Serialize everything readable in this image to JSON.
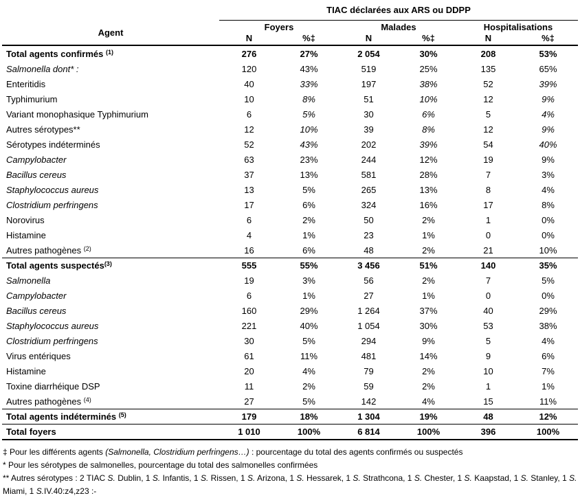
{
  "title": "TIAC déclarées aux ARS ou DDPP",
  "header": {
    "agent": "Agent",
    "groups": [
      "Foyers",
      "Malades",
      "Hospitalisations"
    ],
    "subs": [
      "N",
      "%‡",
      "N",
      "%‡",
      "N",
      "%‡"
    ]
  },
  "colors": {
    "text": "#000000",
    "background": "#ffffff",
    "rule": "#000000"
  },
  "rows": [
    {
      "label": "Total agents confirmés",
      "sup": "(1)",
      "supSpace": true,
      "bold": true,
      "indent": 0,
      "values": [
        "276",
        "27%",
        "2 054",
        "30%",
        "208",
        "53%"
      ]
    },
    {
      "label": "Salmonella dont* :",
      "italic": true,
      "indent": 1,
      "values": [
        "120",
        "43%",
        "519",
        "25%",
        "135",
        "65%"
      ]
    },
    {
      "label": "Enteritidis",
      "indent": 2,
      "pctItalic": true,
      "values": [
        "40",
        "33%",
        "197",
        "38%",
        "52",
        "39%"
      ]
    },
    {
      "label": "Typhimurium",
      "indent": 2,
      "pctItalic": true,
      "values": [
        "10",
        "8%",
        "51",
        "10%",
        "12",
        "9%"
      ]
    },
    {
      "label": "Variant monophasique Typhimurium",
      "indent": 2,
      "pctItalic": true,
      "values": [
        "6",
        "5%",
        "30",
        "6%",
        "5",
        "4%"
      ]
    },
    {
      "label": "Autres sérotypes**",
      "indent": 2,
      "pctItalic": true,
      "values": [
        "12",
        "10%",
        "39",
        "8%",
        "12",
        "9%"
      ]
    },
    {
      "label": "Sérotypes indéterminés",
      "indent": 2,
      "pctItalic": true,
      "values": [
        "52",
        "43%",
        "202",
        "39%",
        "54",
        "40%"
      ]
    },
    {
      "label": "Campylobacter",
      "italic": true,
      "indent": 1,
      "values": [
        "63",
        "23%",
        "244",
        "12%",
        "19",
        "9%"
      ]
    },
    {
      "label": "Bacillus cereus",
      "italic": true,
      "indent": 1,
      "values": [
        "37",
        "13%",
        "581",
        "28%",
        "7",
        "3%"
      ]
    },
    {
      "label": "Staphylococcus aureus",
      "italic": true,
      "indent": 1,
      "values": [
        "13",
        "5%",
        "265",
        "13%",
        "8",
        "4%"
      ]
    },
    {
      "label": "Clostridium perfringens",
      "italic": true,
      "indent": 1,
      "values": [
        "17",
        "6%",
        "324",
        "16%",
        "17",
        "8%"
      ]
    },
    {
      "label": "Norovirus",
      "indent": 1,
      "values": [
        "6",
        "2%",
        "50",
        "2%",
        "1",
        "0%"
      ]
    },
    {
      "label": "Histamine",
      "indent": 1,
      "values": [
        "4",
        "1%",
        "23",
        "1%",
        "0",
        "0%"
      ]
    },
    {
      "label": "Autres pathogènes",
      "sup": "(2)",
      "supSpace": true,
      "indent": 1,
      "values": [
        "16",
        "6%",
        "48",
        "2%",
        "21",
        "10%"
      ]
    },
    {
      "label": "Total agents suspectés",
      "sup": "(3)",
      "supSpace": false,
      "bold": true,
      "indent": 0,
      "sep": true,
      "values": [
        "555",
        "55%",
        "3 456",
        "51%",
        "140",
        "35%"
      ]
    },
    {
      "label": "Salmonella",
      "italic": true,
      "indent": 1,
      "values": [
        "19",
        "3%",
        "56",
        "2%",
        "7",
        "5%"
      ]
    },
    {
      "label": "Campylobacter",
      "italic": true,
      "indent": 1,
      "values": [
        "6",
        "1%",
        "27",
        "1%",
        "0",
        "0%"
      ]
    },
    {
      "label": "Bacillus cereus",
      "italic": true,
      "indent": 1,
      "values": [
        "160",
        "29%",
        "1 264",
        "37%",
        "40",
        "29%"
      ]
    },
    {
      "label": "Staphylococcus aureus",
      "italic": true,
      "indent": 1,
      "values": [
        "221",
        "40%",
        "1 054",
        "30%",
        "53",
        "38%"
      ]
    },
    {
      "label": "Clostridium perfringens",
      "italic": true,
      "indent": 1,
      "values": [
        "30",
        "5%",
        "294",
        "9%",
        "5",
        "4%"
      ]
    },
    {
      "label": "Virus entériques",
      "indent": 1,
      "values": [
        "61",
        "11%",
        "481",
        "14%",
        "9",
        "6%"
      ]
    },
    {
      "label": "Histamine",
      "indent": 1,
      "values": [
        "20",
        "4%",
        "79",
        "2%",
        "10",
        "7%"
      ]
    },
    {
      "label": "Toxine diarrhéique DSP",
      "indent": 1,
      "values": [
        "11",
        "2%",
        "59",
        "2%",
        "1",
        "1%"
      ]
    },
    {
      "label": "Autres pathogènes",
      "sup": "(4)",
      "supSpace": true,
      "indent": 1,
      "values": [
        "27",
        "5%",
        "142",
        "4%",
        "15",
        "11%"
      ]
    },
    {
      "label": "Total agents indéterminés",
      "sup": "(5)",
      "supSpace": true,
      "bold": true,
      "indent": 0,
      "sep": true,
      "values": [
        "179",
        "18%",
        "1 304",
        "19%",
        "48",
        "12%"
      ]
    },
    {
      "label": "Total foyers",
      "bold": true,
      "indent": 0,
      "sep": true,
      "values": [
        "1 010",
        "100%",
        "6 814",
        "100%",
        "396",
        "100%"
      ]
    }
  ],
  "footnotes": [
    [
      {
        "t": "‡ Pour les différents agents "
      },
      {
        "t": "(Salmonella, Clostridium perfringens…)",
        "i": true
      },
      {
        "t": " : pourcentage du total des agents confirmés ou suspectés"
      }
    ],
    [
      {
        "t": "* Pour les sérotypes de salmonelles, pourcentage du total des salmonelles confirmées"
      }
    ],
    [
      {
        "t": "** Autres sérotypes : 2 TIAC "
      },
      {
        "t": "S.",
        "i": true
      },
      {
        "t": " Dublin, 1 "
      },
      {
        "t": "S.",
        "i": true
      },
      {
        "t": " Infantis,  1 "
      },
      {
        "t": "S.",
        "i": true
      },
      {
        "t": " Rissen, 1 "
      },
      {
        "t": "S.",
        "i": true
      },
      {
        "t": " Arizona, 1 "
      },
      {
        "t": "S.",
        "i": true
      },
      {
        "t": " Hessarek, 1 "
      },
      {
        "t": "S.",
        "i": true
      },
      {
        "t": " Strathcona, 1 "
      },
      {
        "t": "S.",
        "i": true
      },
      {
        "t": " Chester, 1 "
      },
      {
        "t": "S.",
        "i": true
      },
      {
        "t": " Kaapstad, 1 "
      },
      {
        "t": "S.",
        "i": true
      },
      {
        "t": " Stanley, 1 "
      },
      {
        "t": "S.",
        "i": true
      },
      {
        "t": " Miami, 1 "
      },
      {
        "t": "S.",
        "i": true
      },
      {
        "t": "IV.40:z4,z23 :-"
      }
    ]
  ]
}
